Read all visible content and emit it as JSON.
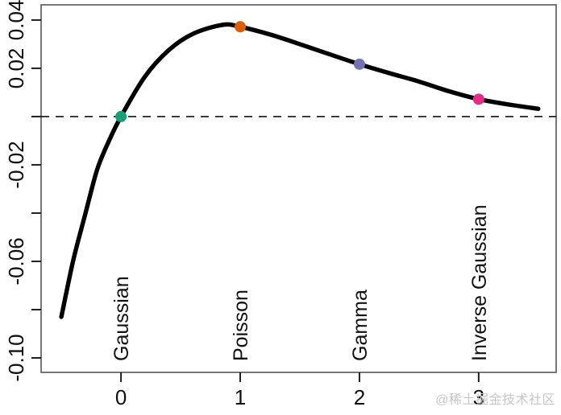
{
  "watermark": "@稀土掘金技术社区",
  "colors": {
    "background": "#ffffff",
    "curve": "#000000",
    "box": "#565656",
    "tick": "#1f1f1f",
    "label": "#111111",
    "reference_line": "#111111",
    "watermark": "#c6c6c6"
  },
  "chart_data": {
    "type": "line",
    "title": "",
    "xlabel": "",
    "ylabel": "",
    "xlim": [
      -0.67,
      3.65
    ],
    "ylim": [
      -0.106,
      0.0463
    ],
    "grid": false,
    "legend": false,
    "x_ticks": [
      {
        "value": 0,
        "label": "0"
      },
      {
        "value": 1,
        "label": "1"
      },
      {
        "value": 2,
        "label": "2"
      },
      {
        "value": 3,
        "label": "3"
      }
    ],
    "y_ticks": [
      {
        "value": 0.04,
        "label": "0.04"
      },
      {
        "value": 0.02,
        "label": "0.02"
      },
      {
        "value": 0.0,
        "label": ""
      },
      {
        "value": -0.02,
        "label": "-0.02"
      },
      {
        "value": -0.04,
        "label": ""
      },
      {
        "value": -0.06,
        "label": "-0.06"
      },
      {
        "value": -0.08,
        "label": ""
      },
      {
        "value": -0.1,
        "label": "-0.10"
      }
    ],
    "reference_line": {
      "y": 0.0,
      "style": "dashed"
    },
    "curve": {
      "x": [
        -0.5,
        -0.4,
        -0.3,
        -0.2,
        -0.1,
        0.0,
        0.2,
        0.4,
        0.6,
        0.85,
        1.0,
        1.25,
        1.5,
        1.75,
        2.0,
        2.25,
        2.5,
        2.75,
        3.0,
        3.25,
        3.5
      ],
      "y": [
        -0.083,
        -0.0595,
        -0.0405,
        -0.022,
        -0.01,
        0.0,
        0.0165,
        0.0275,
        0.0342,
        0.038,
        0.0372,
        0.034,
        0.03,
        0.0258,
        0.0217,
        0.018,
        0.0145,
        0.0105,
        0.0072,
        0.005,
        0.0032
      ]
    },
    "points": [
      {
        "x": 0,
        "y": 0.0,
        "label": "Gaussian",
        "color": "#1B9E77"
      },
      {
        "x": 1,
        "y": 0.0372,
        "label": "Poisson",
        "color": "#D95F02"
      },
      {
        "x": 2,
        "y": 0.0217,
        "label": "Gamma",
        "color": "#7570B3"
      },
      {
        "x": 3,
        "y": 0.0072,
        "label": "Inverse Gaussian",
        "color": "#E7298A"
      }
    ]
  }
}
